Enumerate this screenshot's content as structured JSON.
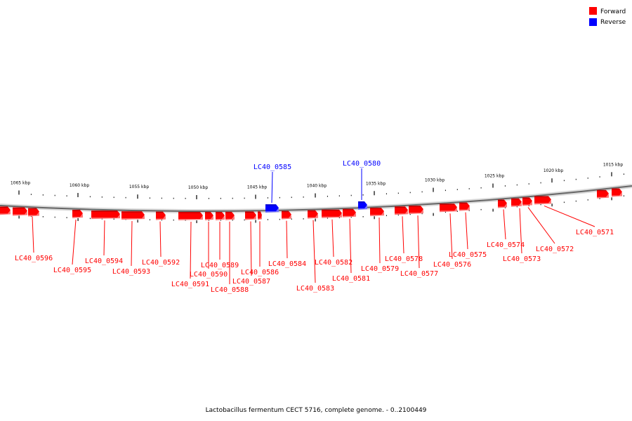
{
  "caption": "Lactobacillus fermentum CECT 5716, complete genome. - 0..2100449",
  "legend": {
    "forward": {
      "label": "Forward",
      "color": "#ff0000"
    },
    "reverse": {
      "label": "Reverse",
      "color": "#0000ff"
    }
  },
  "ticks": [
    {
      "kbp": 1065,
      "label": "1065 kbp"
    },
    {
      "kbp": 1060,
      "label": "1060 kbp"
    },
    {
      "kbp": 1055,
      "label": "1055 kbp"
    },
    {
      "kbp": 1050,
      "label": "1050 kbp"
    },
    {
      "kbp": 1045,
      "label": "1045 kbp"
    },
    {
      "kbp": 1040,
      "label": "1040 kbp"
    },
    {
      "kbp": 1035,
      "label": "1035 kbp"
    },
    {
      "kbp": 1030,
      "label": "1030 kbp"
    },
    {
      "kbp": 1025,
      "label": "1025 kbp"
    },
    {
      "kbp": 1020,
      "label": "1020 kbp"
    },
    {
      "kbp": 1015,
      "label": "1015 kbp"
    }
  ],
  "genes": [
    {
      "id": "LC40_0596",
      "strand": "forward"
    },
    {
      "id": "LC40_0595",
      "strand": "forward"
    },
    {
      "id": "LC40_0594",
      "strand": "forward"
    },
    {
      "id": "LC40_0593",
      "strand": "forward"
    },
    {
      "id": "LC40_0592",
      "strand": "forward"
    },
    {
      "id": "LC40_0591",
      "strand": "forward"
    },
    {
      "id": "LC40_0590",
      "strand": "forward"
    },
    {
      "id": "LC40_0589",
      "strand": "forward"
    },
    {
      "id": "LC40_0588",
      "strand": "forward"
    },
    {
      "id": "LC40_0587",
      "strand": "forward"
    },
    {
      "id": "LC40_0586",
      "strand": "forward"
    },
    {
      "id": "LC40_0585",
      "strand": "reverse"
    },
    {
      "id": "LC40_0584",
      "strand": "forward"
    },
    {
      "id": "LC40_0583",
      "strand": "forward"
    },
    {
      "id": "LC40_0582",
      "strand": "forward"
    },
    {
      "id": "LC40_0581",
      "strand": "forward"
    },
    {
      "id": "LC40_0580",
      "strand": "reverse"
    },
    {
      "id": "LC40_0579",
      "strand": "forward"
    },
    {
      "id": "LC40_0578",
      "strand": "forward"
    },
    {
      "id": "LC40_0577",
      "strand": "forward"
    },
    {
      "id": "LC40_0576",
      "strand": "forward"
    },
    {
      "id": "LC40_0575",
      "strand": "forward"
    },
    {
      "id": "LC40_0574",
      "strand": "forward"
    },
    {
      "id": "LC40_0573",
      "strand": "forward"
    },
    {
      "id": "LC40_0572",
      "strand": "forward"
    },
    {
      "id": "LC40_0571",
      "strand": "forward"
    }
  ]
}
